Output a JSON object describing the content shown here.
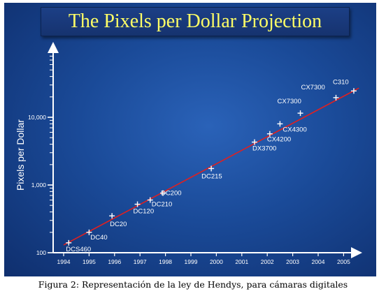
{
  "caption": "Figura 2: Representación de la ley de Hendys, para cámaras digitales",
  "colors": {
    "background": "#1a4a98",
    "title": "#ffff66",
    "axis": "#ffffff",
    "trend": "#e02020"
  },
  "chart_data": {
    "type": "scatter",
    "title": "The Pixels per Dollar Projection",
    "xlabel": "",
    "ylabel": "Pixels per Dollar",
    "x_ticks": [
      "1994",
      "1995",
      "1996",
      "1997",
      "1998",
      "1999",
      "2000",
      "2001",
      "2002",
      "2003",
      "2004",
      "2005"
    ],
    "y_ticks": [
      "100",
      "1,000",
      "10,000"
    ],
    "y_scale": "log",
    "xlim": [
      1993.6,
      2005.7
    ],
    "ylim": [
      100,
      80000
    ],
    "grid": false,
    "trend_line": {
      "from": [
        1994.0,
        130
      ],
      "to": [
        2005.6,
        27000
      ]
    },
    "points": [
      {
        "label": "DCS460",
        "x": 1994.2,
        "y": 140
      },
      {
        "label": "DC40",
        "x": 1995.0,
        "y": 200
      },
      {
        "label": "DC20",
        "x": 1995.9,
        "y": 350
      },
      {
        "label": "DC120",
        "x": 1996.9,
        "y": 520
      },
      {
        "label": "DC210",
        "x": 1997.4,
        "y": 600
      },
      {
        "label": "DC200",
        "x": 1997.9,
        "y": 760
      },
      {
        "label": "DC215",
        "x": 1999.8,
        "y": 1750
      },
      {
        "label": "DX3700",
        "x": 2001.5,
        "y": 4300
      },
      {
        "label": "CX4200",
        "x": 2002.1,
        "y": 5700
      },
      {
        "label": "CX4300",
        "x": 2002.5,
        "y": 8000
      },
      {
        "label": "CX7300",
        "x": 2003.3,
        "y": 11500
      },
      {
        "label": "CX7300",
        "x": 2004.7,
        "y": 19500
      },
      {
        "label": "C310",
        "x": 2005.4,
        "y": 24500
      }
    ]
  }
}
